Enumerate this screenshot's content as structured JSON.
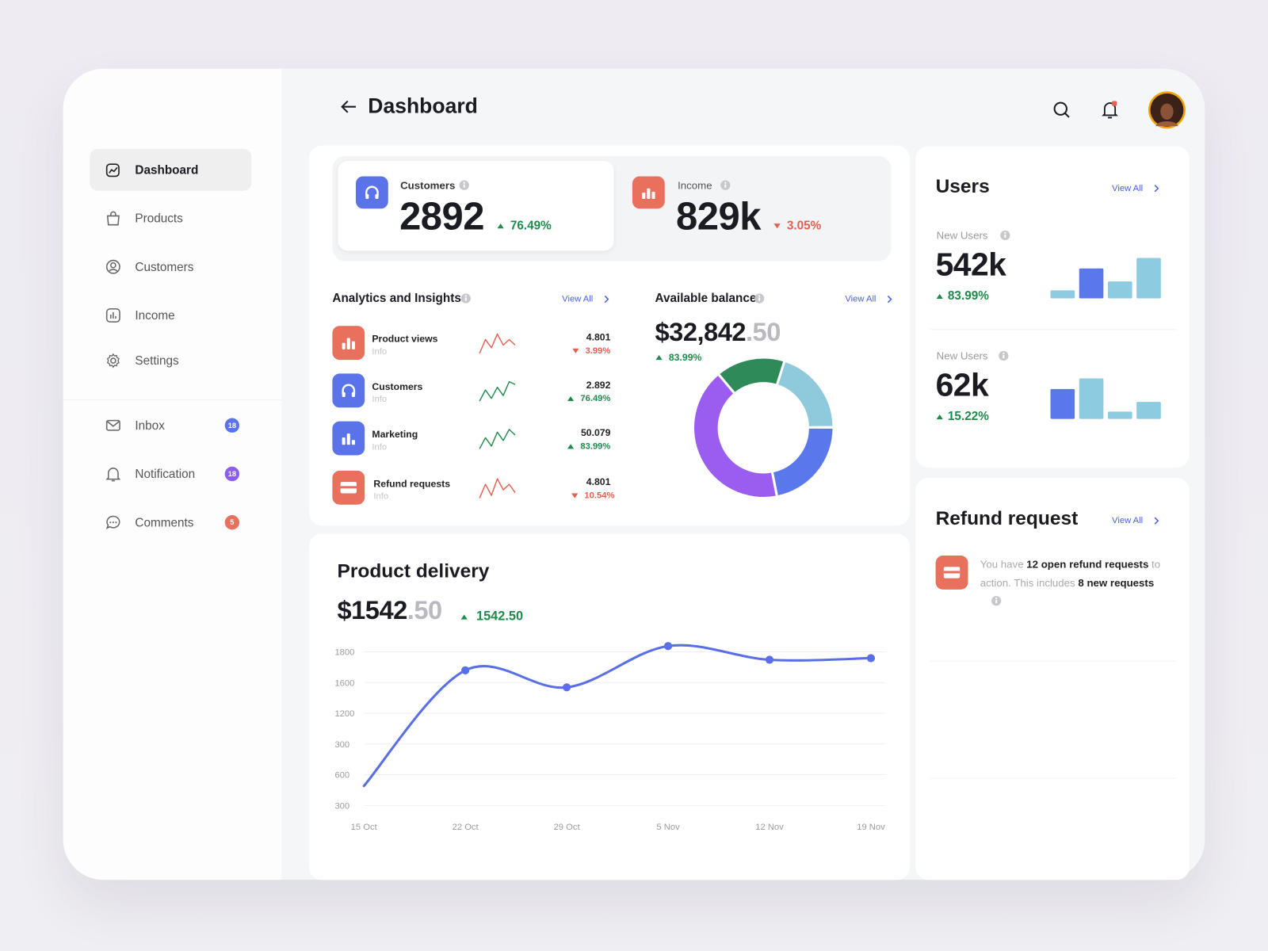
{
  "sidebar": {
    "nav": [
      "Dashboard",
      "Products",
      "Customers",
      "Income",
      "Settings"
    ],
    "messages": [
      {
        "label": "Inbox",
        "badge": "18",
        "color": "#5b73e8"
      },
      {
        "label": "Notification",
        "badge": "18",
        "color": "#8d5cf0"
      },
      {
        "label": "Comments",
        "badge": "5",
        "color": "#e8705d"
      }
    ]
  },
  "header": {
    "title": "Dashboard"
  },
  "stats": [
    {
      "label": "Customers",
      "value": "2892",
      "change": "76.49%",
      "trend": "up",
      "color": "#5b73e8"
    },
    {
      "label": "Income",
      "value": "829k",
      "change": "3.05%",
      "trend": "down",
      "color": "#e8705d"
    }
  ],
  "analytics": {
    "title": "Analytics and Insights",
    "view_all": "View All",
    "items": [
      {
        "name": "Product views",
        "sub": "Info",
        "value": "4.801",
        "change": "3.99%",
        "trend": "down",
        "color": "#e8705d",
        "spark": [
          2,
          7,
          4,
          9,
          5,
          7,
          5
        ]
      },
      {
        "name": "Customers",
        "sub": "Info",
        "value": "2.892",
        "change": "76.49%",
        "trend": "up",
        "color": "#5b73e8",
        "spark": [
          2,
          6,
          3,
          7,
          4,
          9,
          8
        ]
      },
      {
        "name": "Marketing",
        "sub": "Info",
        "value": "50.079",
        "change": "83.99%",
        "trend": "up",
        "color": "#5b73e8",
        "spark": [
          2,
          6,
          3,
          8,
          5,
          9,
          7
        ]
      },
      {
        "name": "Refund requests",
        "sub": "Info",
        "value": "4.801",
        "change": "10.54%",
        "trend": "down",
        "color": "#e8705d",
        "spark": [
          2,
          7,
          3,
          9,
          5,
          7,
          4
        ]
      }
    ]
  },
  "balance": {
    "title": "Available balance",
    "view_all": "View All",
    "amount": "$32,842",
    "cents": ".50",
    "change": "83.99%",
    "trend": "up",
    "chart_data": {
      "type": "donut",
      "values": [
        16,
        20,
        22,
        42
      ],
      "colors": [
        "#2f8a5a",
        "#8fc9dc",
        "#5a78ec",
        "#9b5cf0"
      ]
    }
  },
  "delivery": {
    "title": "Product delivery",
    "amount": "$1542",
    "cents": ".50",
    "change": "1542.50",
    "trend": "up",
    "chart_data": {
      "type": "line",
      "categories": [
        "15 Oct",
        "22 Oct",
        "29 Oct",
        "5 Nov",
        "12 Nov",
        "19 Nov"
      ],
      "values": [
        490,
        1619,
        1453,
        1856,
        1722,
        1738
      ],
      "color": "#5a6fe6",
      "ylim": [
        300,
        1800
      ],
      "y_labels": [
        "1800",
        "1600",
        "1200",
        "300",
        "600",
        "300"
      ]
    }
  },
  "users": {
    "title": "Users",
    "view_all": "View All",
    "items": [
      {
        "label": "New Users",
        "value": "542k",
        "change": "83.99%",
        "trend": "up",
        "bars": [
          10,
          37,
          21,
          50
        ],
        "bar_colors": [
          "#8ccbe0",
          "#5a78ec",
          "#8ccbe0",
          "#8ccbe0"
        ]
      },
      {
        "label": "New Users",
        "value": "62k",
        "change": "15.22%",
        "trend": "up",
        "bars": [
          37,
          50,
          9,
          21
        ],
        "bar_colors": [
          "#5a78ec",
          "#8ccbe0",
          "#8ccbe0",
          "#8ccbe0"
        ]
      }
    ]
  },
  "refund": {
    "title": "Refund request",
    "view_all": "View All",
    "text": [
      "You have ",
      "12 open refund requests",
      " to action. This includes ",
      "8 new requests"
    ]
  }
}
